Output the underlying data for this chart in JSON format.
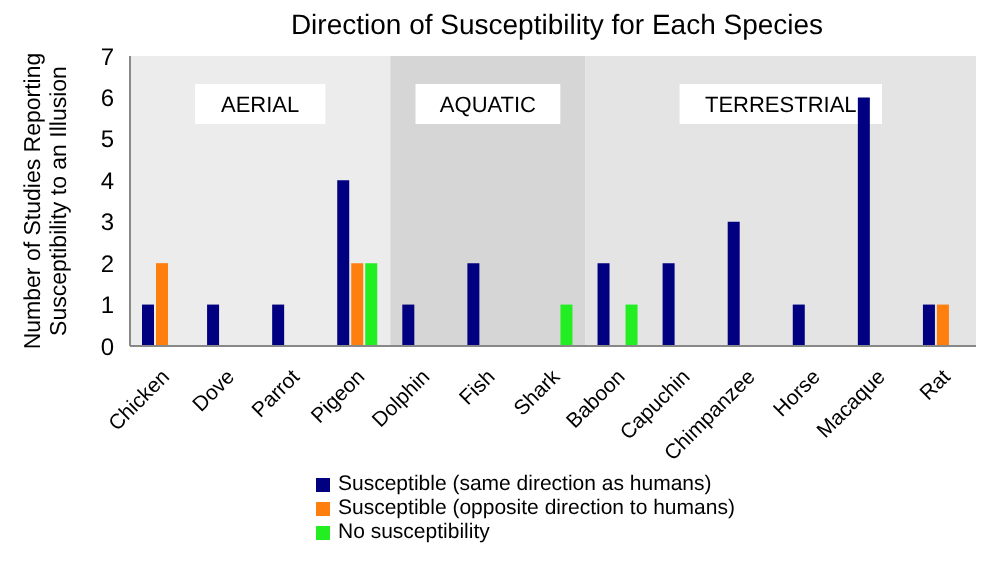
{
  "chart_data": {
    "type": "bar",
    "title": "Direction of Susceptibility for Each Species",
    "ylabel": "Number of Studies Reporting Susceptibility to an Illusion",
    "categories": [
      "Chicken",
      "Dove",
      "Parrot",
      "Pigeon",
      "Dolphin",
      "Fish",
      "Shark",
      "Baboon",
      "Capuchin",
      "Chimpanzee",
      "Horse",
      "Macaque",
      "Rat"
    ],
    "series": [
      {
        "name": "Susceptible (same direction as humans)",
        "color": "#000080",
        "values": [
          1,
          1,
          1,
          4,
          1,
          2,
          0,
          2,
          2,
          3,
          1,
          6,
          1
        ]
      },
      {
        "name": "Susceptible (opposite direction to humans)",
        "color": "#ff7f0e",
        "values": [
          2,
          0,
          0,
          2,
          0,
          0,
          0,
          0,
          0,
          0,
          0,
          0,
          1
        ]
      },
      {
        "name": "No susceptibility",
        "color": "#22ee22",
        "values": [
          0,
          0,
          0,
          2,
          0,
          0,
          1,
          1,
          0,
          0,
          0,
          0,
          0
        ]
      }
    ],
    "ylim": [
      0,
      7
    ],
    "yticks": [
      0,
      1,
      2,
      3,
      4,
      5,
      6,
      7
    ],
    "grid": false,
    "legend": "bottom",
    "bands": [
      {
        "axis": "x",
        "from": "Chicken",
        "to": "Pigeon",
        "label": "AERIAL",
        "color": "#ececec"
      },
      {
        "axis": "x",
        "from": "Dolphin",
        "to": "Shark",
        "label": "AQUATIC",
        "color": "#d6d6d6"
      },
      {
        "axis": "x",
        "from": "Baboon",
        "to": "Rat",
        "label": "TERRESTRIAL",
        "color": "#e4e4e4"
      }
    ]
  }
}
